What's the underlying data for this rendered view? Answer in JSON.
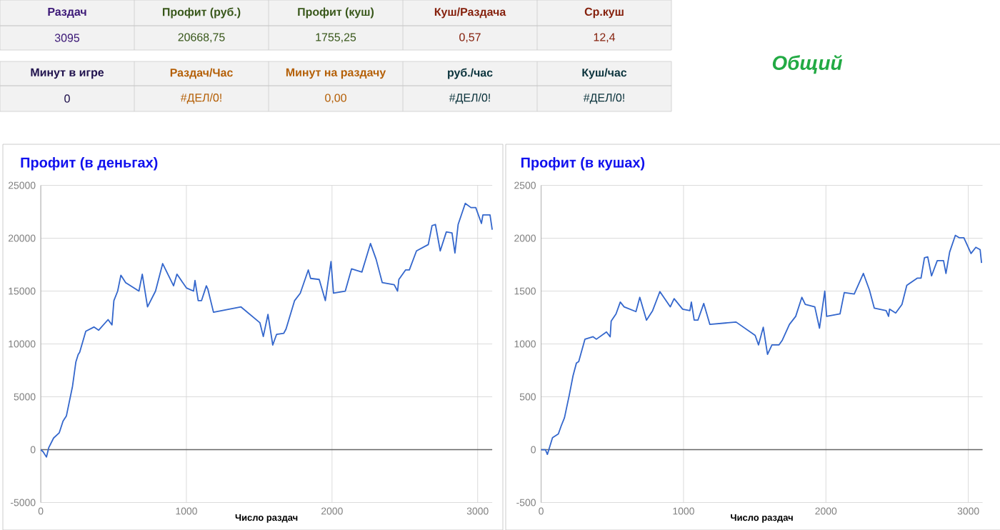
{
  "chart_data": [
    {
      "type": "other",
      "title": "Общий",
      "annotations": [
        "Раздач",
        "Профит (руб.)",
        "Профит (куш)",
        "Куш/Раздача",
        "Ср.куш",
        "3095",
        "20668,75",
        "1755,25",
        "0,57",
        "12,4",
        "Минут в игре",
        "Раздач/Час",
        "Минут на раздачу",
        "руб./час",
        "Куш/час",
        "0",
        "#ДЕЛ/0!",
        "0,00",
        "#ДЕЛ/0!",
        "#ДЕЛ/0!"
      ]
    },
    {
      "type": "line",
      "title": "Профит (в деньгах)",
      "xlabel": "Число раздач",
      "color": "#3366cc",
      "grid": true,
      "x": [
        0,
        16,
        39,
        55,
        88,
        127,
        153,
        176,
        218,
        241,
        257,
        267,
        309,
        365,
        397,
        462,
        489,
        502,
        528,
        550,
        583,
        674,
        697,
        733,
        788,
        837,
        912,
        935,
        1000,
        1049,
        1059,
        1081,
        1104,
        1137,
        1147,
        1186,
        1375,
        1505,
        1528,
        1560,
        1593,
        1619,
        1668,
        1684,
        1743,
        1782,
        1837,
        1853,
        1912,
        1954,
        1993,
        2010,
        2091,
        2134,
        2205,
        2264,
        2303,
        2345,
        2427,
        2450,
        2459,
        2505,
        2531,
        2580,
        2661,
        2687,
        2710,
        2743,
        2785,
        2824,
        2844,
        2866,
        2915,
        2954,
        2987,
        3026,
        3036,
        3085,
        3100
      ],
      "values": [
        0,
        -200,
        -700,
        200,
        1100,
        1600,
        2700,
        3200,
        6000,
        8300,
        9000,
        9200,
        11200,
        11600,
        11300,
        12300,
        11800,
        14100,
        15000,
        16500,
        15800,
        15000,
        16600,
        13500,
        15000,
        17600,
        15500,
        16600,
        15300,
        15000,
        16000,
        14100,
        14100,
        15500,
        15200,
        13000,
        13500,
        12000,
        10700,
        12800,
        9900,
        10900,
        11000,
        11400,
        14100,
        14800,
        17000,
        16200,
        16100,
        14100,
        17800,
        14800,
        15000,
        17100,
        16800,
        19500,
        18000,
        15800,
        15600,
        15000,
        16100,
        17000,
        17000,
        18800,
        19400,
        21200,
        21300,
        18800,
        20600,
        20500,
        18600,
        21300,
        23300,
        22900,
        22900,
        21400,
        22200,
        22200,
        20800
      ],
      "xlim": [
        0,
        3100
      ],
      "ylim": [
        -5000,
        25000
      ],
      "xticks": [
        0,
        1000,
        2000,
        3000
      ],
      "yticks": [
        -5000,
        0,
        5000,
        10000,
        15000,
        20000,
        25000
      ]
    },
    {
      "type": "line",
      "title": "Профит (в кушах)",
      "xlabel": "Число раздач",
      "color": "#3366cc",
      "grid": true,
      "x": [
        0,
        30,
        44,
        80,
        121,
        141,
        164,
        198,
        224,
        248,
        264,
        308,
        365,
        388,
        459,
        485,
        492,
        526,
        556,
        583,
        666,
        693,
        740,
        783,
        834,
        907,
        934,
        994,
        1045,
        1055,
        1075,
        1101,
        1142,
        1185,
        1369,
        1503,
        1527,
        1560,
        1590,
        1621,
        1671,
        1694,
        1744,
        1788,
        1831,
        1855,
        1922,
        1955,
        1992,
        2005,
        2099,
        2129,
        2199,
        2263,
        2306,
        2340,
        2423,
        2440,
        2447,
        2490,
        2534,
        2568,
        2641,
        2668,
        2692,
        2715,
        2742,
        2782,
        2826,
        2843,
        2869,
        2909,
        2936,
        2969,
        3019,
        3053,
        3083,
        3093
      ],
      "values": [
        0,
        0,
        -45,
        113,
        149,
        225,
        302,
        518,
        698,
        820,
        833,
        1045,
        1068,
        1045,
        1113,
        1068,
        1216,
        1284,
        1396,
        1351,
        1306,
        1441,
        1225,
        1315,
        1495,
        1351,
        1428,
        1329,
        1315,
        1396,
        1225,
        1225,
        1383,
        1185,
        1207,
        1081,
        991,
        1158,
        901,
        991,
        991,
        1036,
        1185,
        1261,
        1441,
        1374,
        1351,
        1149,
        1500,
        1261,
        1284,
        1486,
        1473,
        1667,
        1509,
        1338,
        1315,
        1261,
        1329,
        1293,
        1374,
        1554,
        1622,
        1622,
        1815,
        1824,
        1644,
        1788,
        1788,
        1667,
        1869,
        2027,
        2005,
        2005,
        1856,
        1914,
        1892,
        1766
      ],
      "xlim": [
        0,
        3100
      ],
      "ylim": [
        -500,
        2500
      ],
      "xticks": [
        0,
        1000,
        2000,
        3000
      ],
      "yticks": [
        -500,
        0,
        500,
        1000,
        1500,
        2000,
        2500
      ]
    }
  ]
}
